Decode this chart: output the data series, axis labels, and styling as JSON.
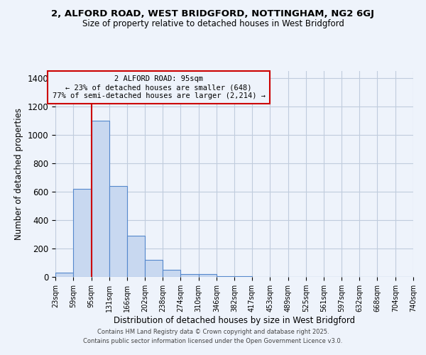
{
  "title": "2, ALFORD ROAD, WEST BRIDGFORD, NOTTINGHAM, NG2 6GJ",
  "subtitle": "Size of property relative to detached houses in West Bridgford",
  "xlabel": "Distribution of detached houses by size in West Bridgford",
  "ylabel": "Number of detached properties",
  "bar_values": [
    30,
    620,
    1100,
    640,
    290,
    120,
    50,
    20,
    20,
    5,
    5,
    0,
    0,
    0,
    0,
    0,
    0,
    0,
    0,
    0
  ],
  "bin_edges": [
    23,
    59,
    95,
    131,
    166,
    202,
    238,
    274,
    310,
    346,
    382,
    417,
    453,
    489,
    525,
    561,
    597,
    632,
    668,
    704,
    740
  ],
  "bin_labels": [
    "23sqm",
    "59sqm",
    "95sqm",
    "131sqm",
    "166sqm",
    "202sqm",
    "238sqm",
    "274sqm",
    "310sqm",
    "346sqm",
    "382sqm",
    "417sqm",
    "453sqm",
    "489sqm",
    "525sqm",
    "561sqm",
    "597sqm",
    "632sqm",
    "668sqm",
    "704sqm",
    "740sqm"
  ],
  "property_value": 95,
  "annotation_title": "2 ALFORD ROAD: 95sqm",
  "annotation_line1": "← 23% of detached houses are smaller (648)",
  "annotation_line2": "77% of semi-detached houses are larger (2,214) →",
  "bar_color": "#c8d8f0",
  "bar_edge_color": "#5588cc",
  "redline_color": "#cc0000",
  "annotation_box_color": "#cc0000",
  "ylim": [
    0,
    1450
  ],
  "bg_color": "#eef3fb",
  "grid_color": "#c0ccdd",
  "footer1": "Contains HM Land Registry data © Crown copyright and database right 2025.",
  "footer2": "Contains public sector information licensed under the Open Government Licence v3.0."
}
